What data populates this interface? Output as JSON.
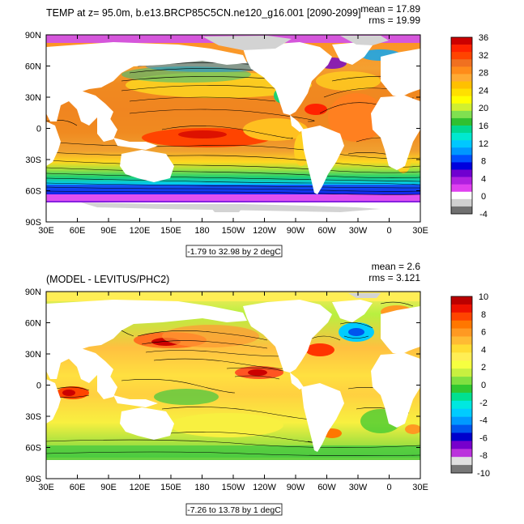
{
  "panels": [
    {
      "title": "TEMP at z=  95.0m, b.e13.BRCP85C5CN.ne120_g16.001 [2090-2099]",
      "stats": {
        "mean": "mean = 17.89",
        "rms": "rms = 19.99"
      },
      "range_caption": "-1.79 to 32.98 by 2 degC",
      "colorbar": {
        "labels": [
          "36",
          "32",
          "28",
          "24",
          "20",
          "16",
          "12",
          "8",
          "4",
          "0",
          "-4"
        ],
        "colors": [
          "#cc0000",
          "#ff2200",
          "#ff4400",
          "#f07020",
          "#ff8c1a",
          "#ffaa33",
          "#ffc000",
          "#ffe000",
          "#ffff00",
          "#d0f030",
          "#80e050",
          "#30c030",
          "#00d890",
          "#00e8d0",
          "#00c8ff",
          "#0098ff",
          "#0050ff",
          "#0000dd",
          "#7000d0",
          "#b020e0",
          "#e040f0",
          "#ffffff",
          "#d0d0d0",
          "#707070"
        ]
      }
    },
    {
      "title": "(MODEL - LEVITUS/PHC2)",
      "stats": {
        "mean": "mean = 2.6",
        "rms": "rms = 3.121"
      },
      "range_caption": "-7.26 to 13.78 by 1 degC",
      "colorbar": {
        "labels": [
          "10",
          "8",
          "6",
          "4",
          "2",
          "0",
          "-2",
          "-4",
          "-6",
          "-8",
          "-10"
        ],
        "colors": [
          "#bb0000",
          "#ee1100",
          "#ff4400",
          "#ff7700",
          "#ff9922",
          "#ffbb33",
          "#ffdd33",
          "#ffee55",
          "#f6ff40",
          "#c8f040",
          "#80e040",
          "#30c830",
          "#00e090",
          "#00e8e0",
          "#00ccff",
          "#0099ff",
          "#0055ee",
          "#0000cc",
          "#7700cc",
          "#bb33dd",
          "#e0e0e0",
          "#777777"
        ]
      }
    }
  ],
  "axes": {
    "lat_labels": [
      "90N",
      "60N",
      "30N",
      "0",
      "30S",
      "60S",
      "90S"
    ],
    "lon_labels": [
      "30E",
      "60E",
      "90E",
      "120E",
      "150E",
      "180",
      "150W",
      "120W",
      "90W",
      "60W",
      "30W",
      "0",
      "30E"
    ]
  },
  "colors": {
    "land": "#ffffff",
    "missing": "#d3d3d3",
    "frame": "#000000"
  }
}
